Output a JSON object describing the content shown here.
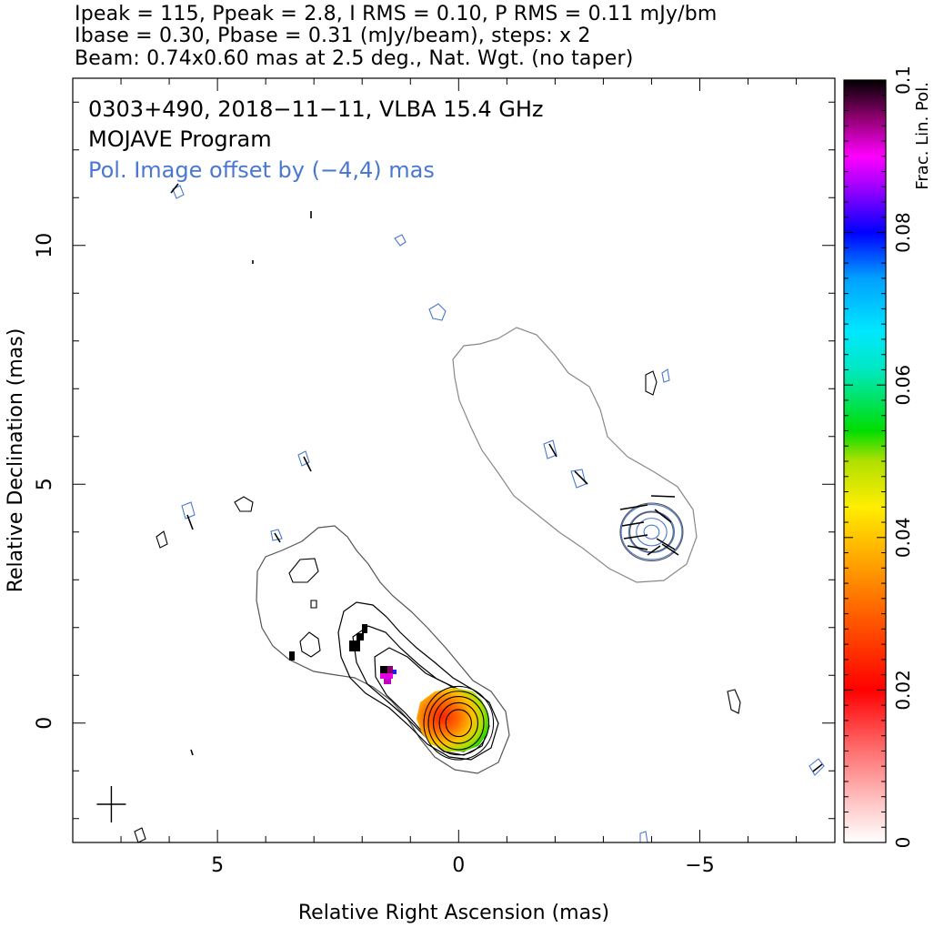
{
  "header": {
    "line1": "Ipeak = 115, Ppeak = 2.8, I RMS = 0.10, P RMS = 0.11 mJy/bm",
    "line2": "Ibase = 0.30, Pbase = 0.31 (mJy/beam), steps: x 2",
    "line3": "Beam: 0.74x0.60 mas at 2.5 deg., Nat. Wgt. (no taper)"
  },
  "plot": {
    "title_line1": "0303+490, 2018−11−11, VLBA 15.4 GHz",
    "title_line2": "MOJAVE Program",
    "annotation": "Pol. Image offset by (−4,4) mas",
    "annotation_color": "#4a78d0",
    "xlabel": "Relative Right Ascension (mas)",
    "ylabel": "Relative Declination (mas)",
    "colorbar_label": "Frac. Lin. Pol."
  },
  "chart_data": {
    "type": "heatmap",
    "title": "0303+490, 2018−11−11, VLBA 15.4 GHz",
    "xlabel": "Relative Right Ascension (mas)",
    "ylabel": "Relative Declination (mas)",
    "xlim": [
      8,
      -7.8
    ],
    "ylim": [
      -2.5,
      13.5
    ],
    "x_ticks": [
      {
        "value": 5,
        "label": "5"
      },
      {
        "value": 0,
        "label": "0"
      },
      {
        "value": -5,
        "label": "−5"
      }
    ],
    "y_ticks": [
      {
        "value": 0,
        "label": "0"
      },
      {
        "value": 5,
        "label": "5"
      },
      {
        "value": 10,
        "label": "10"
      }
    ],
    "colorbar": {
      "label": "Frac. Lin. Pol.",
      "range": [
        0,
        0.1
      ],
      "ticks": [
        {
          "value": 0,
          "label": "0"
        },
        {
          "value": 0.02,
          "label": "0.02"
        },
        {
          "value": 0.04,
          "label": "0.04"
        },
        {
          "value": 0.06,
          "label": "0.06"
        },
        {
          "value": 0.08,
          "label": "0.08"
        },
        {
          "value": 0.1,
          "label": "0.1"
        }
      ]
    },
    "core": {
      "x": 0,
      "y": 0
    },
    "stokes_i_contour_radii": [
      0.28,
      0.42,
      0.55,
      0.66,
      0.76
    ],
    "pol_offset_center": {
      "x": -4,
      "y": 4
    },
    "pol_contour_radii": [
      0.15,
      0.3,
      0.45,
      0.6
    ],
    "beam_cross": {
      "x": 7.2,
      "y": -1.7
    },
    "colors": {
      "i_contour": "#000000",
      "i_outer_contour": "#888888",
      "p_contour": "#4a78d0",
      "evpa": "#000000"
    }
  }
}
